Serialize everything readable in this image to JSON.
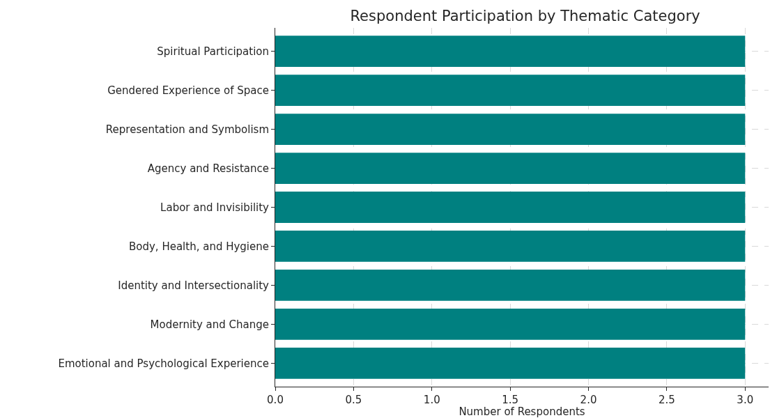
{
  "chart_data": {
    "type": "bar",
    "orientation": "horizontal",
    "title": "Respondent Participation by Thematic Category",
    "xlabel": "Number of Respondents",
    "categories": [
      "Spiritual Participation",
      "Gendered Experience of Space",
      "Representation and Symbolism",
      "Agency and Resistance",
      "Labor and Invisibility",
      "Body, Health, and Hygiene",
      "Identity and Intersectionality",
      "Modernity and Change",
      "Emotional and Psychological Experience"
    ],
    "values": [
      3,
      3,
      3,
      3,
      3,
      3,
      3,
      3,
      3
    ],
    "color": "#008080",
    "xlim": [
      0,
      3.15
    ],
    "xticks": [
      {
        "value": 0,
        "label": "0.0"
      },
      {
        "value": 0.5,
        "label": "0.5"
      },
      {
        "value": 1,
        "label": "1.0"
      },
      {
        "value": 1.5,
        "label": "1.5"
      },
      {
        "value": 2,
        "label": "2.0"
      },
      {
        "value": 2.5,
        "label": "2.5"
      },
      {
        "value": 3,
        "label": "3.0"
      }
    ],
    "grid": true
  }
}
